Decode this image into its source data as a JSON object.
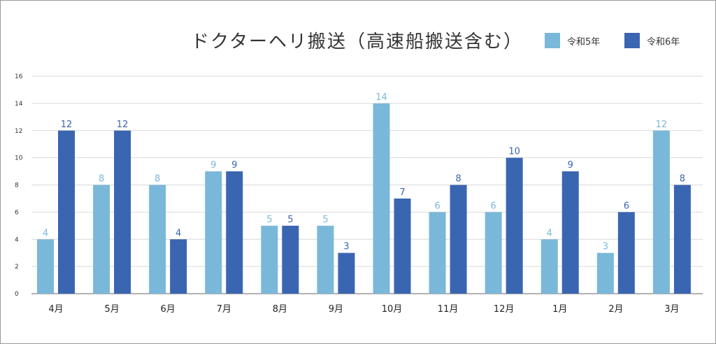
{
  "chart_data": {
    "type": "bar",
    "title": "ドクターヘリ搬送（高速船搬送含む）",
    "categories": [
      "4月",
      "5月",
      "6月",
      "7月",
      "8月",
      "9月",
      "10月",
      "11月",
      "12月",
      "1月",
      "2月",
      "3月"
    ],
    "series": [
      {
        "name": "令和5年",
        "color": "#7ab8d9",
        "values": [
          4,
          8,
          8,
          9,
          5,
          5,
          14,
          6,
          6,
          4,
          3,
          12
        ]
      },
      {
        "name": "令和6年",
        "color": "#3a65b0",
        "values": [
          12,
          12,
          4,
          9,
          5,
          3,
          7,
          8,
          10,
          9,
          6,
          8
        ]
      }
    ],
    "ylim": [
      0,
      16
    ],
    "yticks": [
      0,
      2,
      4,
      6,
      8,
      10,
      12,
      14,
      16
    ],
    "grid": true,
    "legend": "top-right"
  }
}
